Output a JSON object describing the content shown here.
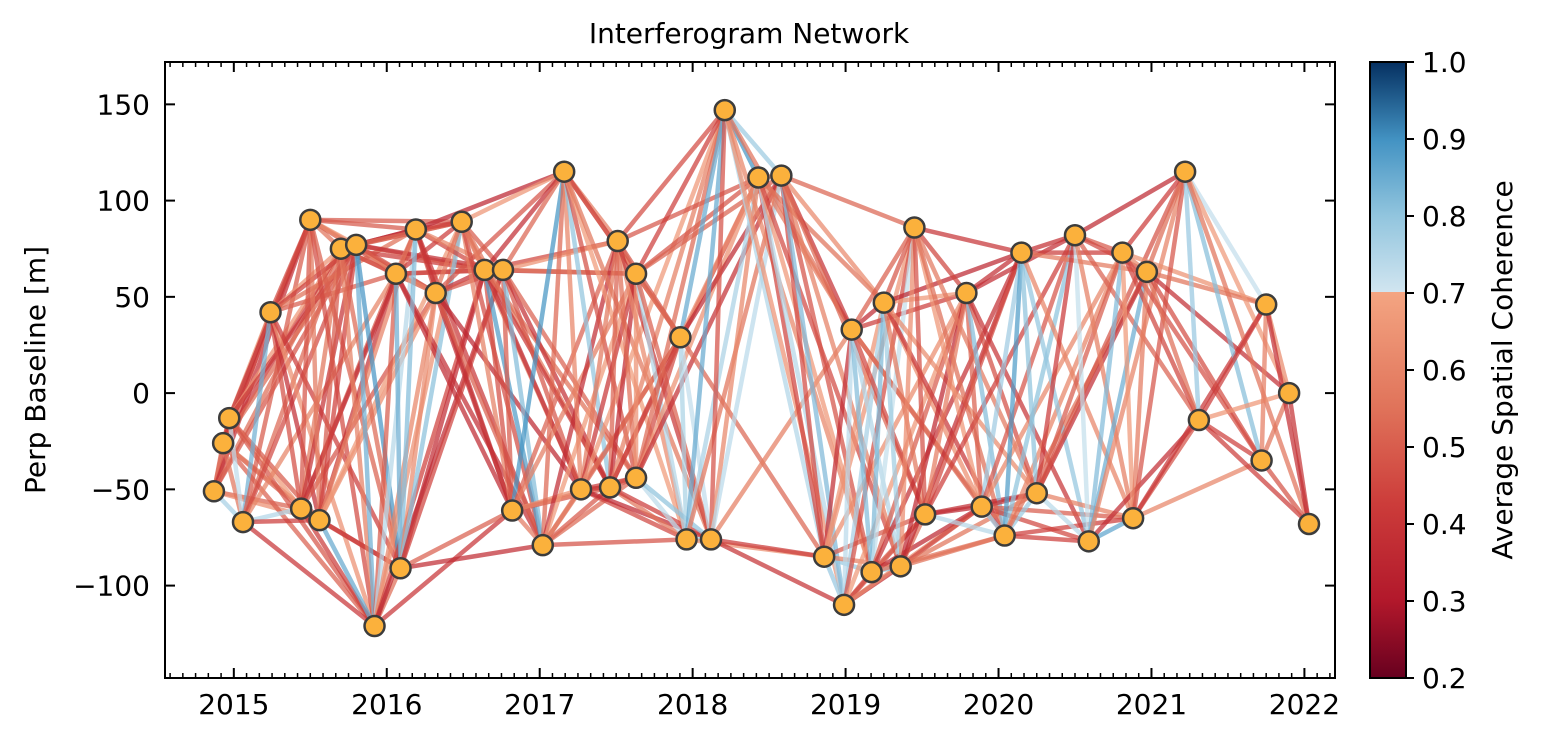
{
  "chart_data": {
    "type": "network",
    "title": "Interferogram Network",
    "xlabel": "",
    "ylabel": "Perp Baseline [m]",
    "xlim": [
      2014.55,
      2022.2
    ],
    "ylim": [
      -148,
      172
    ],
    "xticks": [
      "2015",
      "2016",
      "2017",
      "2018",
      "2019",
      "2020",
      "2021",
      "2022"
    ],
    "yticks": [
      150,
      100,
      50,
      0,
      -50,
      -100
    ],
    "colorbar": {
      "label": "Average Spatial Coherence",
      "min": 0.2,
      "max": 1.0,
      "threshold": 0.7,
      "ticks": [
        "1.0",
        "0.9",
        "0.8",
        "0.7",
        "0.6",
        "0.5",
        "0.4",
        "0.3",
        "0.2"
      ]
    },
    "acquisitions": [
      {
        "x": 2014.87,
        "y": -51
      },
      {
        "x": 2014.93,
        "y": -26
      },
      {
        "x": 2014.97,
        "y": -13
      },
      {
        "x": 2015.06,
        "y": -67
      },
      {
        "x": 2015.24,
        "y": 42
      },
      {
        "x": 2015.44,
        "y": -60
      },
      {
        "x": 2015.5,
        "y": 90
      },
      {
        "x": 2015.56,
        "y": -66
      },
      {
        "x": 2015.7,
        "y": 75
      },
      {
        "x": 2015.8,
        "y": 77
      },
      {
        "x": 2015.92,
        "y": -121
      },
      {
        "x": 2016.06,
        "y": 62
      },
      {
        "x": 2016.09,
        "y": -91
      },
      {
        "x": 2016.19,
        "y": 85
      },
      {
        "x": 2016.32,
        "y": 52
      },
      {
        "x": 2016.49,
        "y": 89
      },
      {
        "x": 2016.64,
        "y": 64
      },
      {
        "x": 2016.76,
        "y": 64
      },
      {
        "x": 2016.82,
        "y": -61
      },
      {
        "x": 2017.02,
        "y": -79
      },
      {
        "x": 2017.16,
        "y": 115
      },
      {
        "x": 2017.27,
        "y": -50
      },
      {
        "x": 2017.46,
        "y": -49
      },
      {
        "x": 2017.51,
        "y": 79
      },
      {
        "x": 2017.63,
        "y": 62
      },
      {
        "x": 2017.63,
        "y": -44
      },
      {
        "x": 2017.92,
        "y": 29
      },
      {
        "x": 2017.96,
        "y": -76
      },
      {
        "x": 2018.12,
        "y": -76
      },
      {
        "x": 2018.21,
        "y": 147
      },
      {
        "x": 2018.43,
        "y": 112
      },
      {
        "x": 2018.58,
        "y": 113
      },
      {
        "x": 2018.86,
        "y": -85
      },
      {
        "x": 2018.99,
        "y": -110
      },
      {
        "x": 2019.04,
        "y": 33
      },
      {
        "x": 2019.17,
        "y": -93
      },
      {
        "x": 2019.25,
        "y": 47
      },
      {
        "x": 2019.36,
        "y": -90
      },
      {
        "x": 2019.45,
        "y": 86
      },
      {
        "x": 2019.52,
        "y": -63
      },
      {
        "x": 2019.79,
        "y": 52
      },
      {
        "x": 2019.89,
        "y": -59
      },
      {
        "x": 2020.04,
        "y": -74
      },
      {
        "x": 2020.15,
        "y": 73
      },
      {
        "x": 2020.25,
        "y": -52
      },
      {
        "x": 2020.5,
        "y": 82
      },
      {
        "x": 2020.59,
        "y": -77
      },
      {
        "x": 2020.81,
        "y": 73
      },
      {
        "x": 2020.88,
        "y": -65
      },
      {
        "x": 2020.97,
        "y": 63
      },
      {
        "x": 2021.22,
        "y": 115
      },
      {
        "x": 2021.31,
        "y": -14
      },
      {
        "x": 2021.72,
        "y": -35
      },
      {
        "x": 2021.75,
        "y": 46
      },
      {
        "x": 2021.9,
        "y": 0
      },
      {
        "x": 2022.03,
        "y": -68
      }
    ],
    "connections": "small-baseline network, each acquisition linked to the next 1-12 acquisitions; line color encodes average spatial coherence"
  }
}
